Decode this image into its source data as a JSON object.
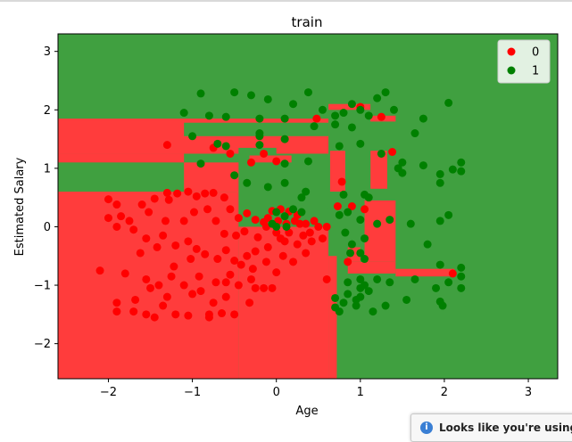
{
  "chart_data": {
    "type": "scatter",
    "title": "train",
    "xlabel": "Age",
    "ylabel": "Estimated Salary",
    "xlim": [
      -2.6,
      3.35
    ],
    "ylim": [
      -2.6,
      3.3
    ],
    "x_ticks": [
      -2,
      -1,
      0,
      1,
      2,
      3
    ],
    "y_ticks": [
      -2,
      -1,
      0,
      1,
      2,
      3
    ],
    "grid": false,
    "legend_position": "top-right",
    "region_colors": {
      "0": "#ff3c3c",
      "1": "#40a040"
    },
    "background_region": "1",
    "regions_class_0": [
      {
        "x": [
          -2.6,
          -0.45
        ],
        "y": [
          -2.6,
          0.6
        ]
      },
      {
        "x": [
          -0.45,
          0.62
        ],
        "y": [
          -2.6,
          0.0
        ]
      },
      {
        "x": [
          -2.6,
          0.62
        ],
        "y": [
          1.25,
          1.85
        ]
      },
      {
        "x": [
          -2.6,
          -1.1
        ],
        "y": [
          1.1,
          1.25
        ]
      },
      {
        "x": [
          -1.1,
          -0.45
        ],
        "y": [
          0.6,
          1.1
        ]
      },
      {
        "x": [
          0.62,
          0.72
        ],
        "y": [
          -2.6,
          -0.5
        ]
      },
      {
        "x": [
          0.64,
          0.82
        ],
        "y": [
          0.6,
          1.3
        ]
      },
      {
        "x": [
          0.82,
          0.88
        ],
        "y": [
          0.2,
          0.5
        ]
      },
      {
        "x": [
          0.85,
          1.0
        ],
        "y": [
          -0.6,
          -0.35
        ]
      },
      {
        "x": [
          0.85,
          1.42
        ],
        "y": [
          -0.8,
          -0.6
        ]
      },
      {
        "x": [
          1.05,
          1.42
        ],
        "y": [
          -0.6,
          0.45
        ]
      },
      {
        "x": [
          1.12,
          1.32
        ],
        "y": [
          0.65,
          1.3
        ]
      },
      {
        "x": [
          1.42,
          2.12
        ],
        "y": [
          -0.85,
          -0.72
        ]
      },
      {
        "x": [
          0.62,
          1.12
        ],
        "y": [
          2.0,
          2.1
        ]
      },
      {
        "x": [
          1.12,
          1.42
        ],
        "y": [
          1.8,
          1.9
        ]
      },
      {
        "x": [
          -0.32,
          0.18
        ],
        "y": [
          1.1,
          1.22
        ]
      }
    ],
    "regions_class_1": [
      {
        "x": [
          -1.1,
          0.62
        ],
        "y": [
          1.55,
          1.78
        ]
      },
      {
        "x": [
          -0.45,
          0.0
        ],
        "y": [
          1.22,
          1.35
        ]
      },
      {
        "x": [
          0.72,
          0.82
        ],
        "y": [
          -2.6,
          -0.5
        ]
      },
      {
        "x": [
          -0.15,
          0.62
        ],
        "y": [
          0.0,
          0.3
        ]
      },
      {
        "x": [
          0.6,
          0.85
        ],
        "y": [
          0.3,
          0.6
        ]
      },
      {
        "x": [
          0.82,
          1.05
        ],
        "y": [
          -0.35,
          0.6
        ]
      },
      {
        "x": [
          1.0,
          1.12
        ],
        "y": [
          0.6,
          1.3
        ]
      },
      {
        "x": [
          -0.05,
          0.62
        ],
        "y": [
          0.6,
          0.8
        ]
      }
    ],
    "series": [
      {
        "name": "0",
        "color": "#ff0000",
        "points": [
          [
            -2.0,
            0.47
          ],
          [
            -1.9,
            0.38
          ],
          [
            -1.85,
            0.18
          ],
          [
            -1.75,
            0.1
          ],
          [
            -1.6,
            0.38
          ],
          [
            -1.45,
            0.48
          ],
          [
            -1.3,
            0.58
          ],
          [
            -1.28,
            0.46
          ],
          [
            -1.18,
            0.57
          ],
          [
            -1.05,
            0.6
          ],
          [
            -0.95,
            0.52
          ],
          [
            -0.85,
            0.57
          ],
          [
            -0.75,
            0.58
          ],
          [
            -0.62,
            0.5
          ],
          [
            -0.55,
            0.3
          ],
          [
            -0.45,
            0.15
          ],
          [
            -0.35,
            0.23
          ],
          [
            -0.25,
            0.12
          ],
          [
            -0.15,
            0.08
          ],
          [
            -0.05,
            0.27
          ],
          [
            0.05,
            0.3
          ],
          [
            0.15,
            0.26
          ],
          [
            0.25,
            0.2
          ],
          [
            0.35,
            0.05
          ],
          [
            0.4,
            -0.1
          ],
          [
            0.5,
            0.0
          ],
          [
            0.55,
            -0.2
          ],
          [
            -1.9,
            0.0
          ],
          [
            -1.7,
            -0.05
          ],
          [
            -1.55,
            -0.2
          ],
          [
            -1.35,
            -0.15
          ],
          [
            -1.2,
            -0.32
          ],
          [
            -1.05,
            -0.25
          ],
          [
            -0.95,
            -0.38
          ],
          [
            -0.85,
            -0.47
          ],
          [
            -0.7,
            -0.55
          ],
          [
            -0.6,
            -0.4
          ],
          [
            -0.5,
            -0.58
          ],
          [
            -0.35,
            -0.5
          ],
          [
            -0.25,
            -0.42
          ],
          [
            -0.1,
            -0.35
          ],
          [
            0.05,
            -0.2
          ],
          [
            0.15,
            -0.1
          ],
          [
            0.25,
            -0.3
          ],
          [
            0.35,
            -0.45
          ],
          [
            -2.1,
            -0.75
          ],
          [
            -1.8,
            -0.8
          ],
          [
            -1.55,
            -0.9
          ],
          [
            -1.4,
            -1.0
          ],
          [
            -1.25,
            -0.85
          ],
          [
            -1.1,
            -1.0
          ],
          [
            -0.9,
            -1.1
          ],
          [
            -0.75,
            -1.3
          ],
          [
            -0.6,
            -1.2
          ],
          [
            -0.45,
            -1.0
          ],
          [
            -0.3,
            -0.9
          ],
          [
            -0.15,
            -1.05
          ],
          [
            0.0,
            -0.78
          ],
          [
            0.2,
            -0.6
          ],
          [
            -1.9,
            -1.3
          ],
          [
            -1.7,
            -1.45
          ],
          [
            -1.55,
            -1.5
          ],
          [
            -1.35,
            -1.35
          ],
          [
            -1.2,
            -1.5
          ],
          [
            -1.05,
            -1.52
          ],
          [
            -0.8,
            -1.55
          ],
          [
            -0.65,
            -1.48
          ],
          [
            -0.5,
            -1.5
          ],
          [
            -0.32,
            -1.3
          ],
          [
            -1.9,
            -1.45
          ],
          [
            -1.45,
            -1.55
          ],
          [
            -0.8,
            -1.5
          ],
          [
            -1.52,
            0.25
          ],
          [
            -1.32,
            0.1
          ],
          [
            -1.1,
            0.1
          ],
          [
            -0.98,
            0.25
          ],
          [
            -0.82,
            0.3
          ],
          [
            -0.72,
            0.1
          ],
          [
            -0.62,
            -0.12
          ],
          [
            -0.48,
            -0.15
          ],
          [
            -0.38,
            -0.08
          ],
          [
            -0.22,
            -0.18
          ],
          [
            -0.12,
            0.0
          ],
          [
            0.02,
            0.1
          ],
          [
            0.12,
            0.05
          ],
          [
            0.22,
            0.1
          ],
          [
            0.32,
            -0.15
          ],
          [
            0.42,
            -0.25
          ],
          [
            -2.0,
            0.15
          ],
          [
            -1.62,
            -0.45
          ],
          [
            -1.42,
            -0.35
          ],
          [
            -1.22,
            -0.68
          ],
          [
            -1.02,
            -0.55
          ],
          [
            -0.92,
            -0.85
          ],
          [
            -0.72,
            -0.95
          ],
          [
            -0.55,
            -0.82
          ],
          [
            -0.42,
            -0.65
          ],
          [
            -0.28,
            -0.72
          ],
          [
            -0.12,
            -0.6
          ],
          [
            0.08,
            -0.5
          ],
          [
            -0.1,
            0.15
          ],
          [
            0.0,
            -0.1
          ],
          [
            0.1,
            -0.25
          ],
          [
            0.28,
            0.05
          ],
          [
            0.45,
            0.1
          ],
          [
            -0.75,
            1.35
          ],
          [
            -0.55,
            1.25
          ],
          [
            -0.3,
            1.1
          ],
          [
            -0.15,
            1.25
          ],
          [
            0.0,
            1.12
          ],
          [
            -1.3,
            1.4
          ],
          [
            0.48,
            1.85
          ],
          [
            1.0,
            2.05
          ],
          [
            1.25,
            1.88
          ],
          [
            1.38,
            1.28
          ],
          [
            0.78,
            0.77
          ],
          [
            0.73,
            0.35
          ],
          [
            0.85,
            -0.6
          ],
          [
            0.6,
            -0.9
          ],
          [
            2.1,
            -0.8
          ],
          [
            0.9,
            0.35
          ],
          [
            1.05,
            0.3
          ],
          [
            -1.5,
            -1.05
          ],
          [
            -1.3,
            -1.2
          ],
          [
            0.6,
            0.0
          ],
          [
            -0.25,
            -1.05
          ],
          [
            -0.05,
            -1.05
          ],
          [
            -1.0,
            -1.15
          ],
          [
            -1.68,
            -1.25
          ],
          [
            -0.6,
            -0.95
          ]
        ]
      },
      {
        "name": "1",
        "color": "#008000",
        "points": [
          [
            -0.9,
            2.28
          ],
          [
            -0.5,
            2.3
          ],
          [
            -0.3,
            2.25
          ],
          [
            -0.1,
            2.18
          ],
          [
            0.2,
            2.1
          ],
          [
            0.38,
            2.3
          ],
          [
            0.55,
            2.0
          ],
          [
            0.7,
            1.9
          ],
          [
            0.8,
            1.95
          ],
          [
            0.9,
            2.1
          ],
          [
            1.0,
            2.0
          ],
          [
            1.2,
            2.2
          ],
          [
            1.3,
            2.3
          ],
          [
            1.1,
            1.9
          ],
          [
            1.4,
            2.0
          ],
          [
            1.75,
            1.85
          ],
          [
            2.05,
            2.12
          ],
          [
            1.65,
            1.6
          ],
          [
            -1.1,
            1.95
          ],
          [
            -0.8,
            1.9
          ],
          [
            -0.6,
            1.88
          ],
          [
            -0.2,
            1.85
          ],
          [
            0.1,
            1.85
          ],
          [
            0.45,
            1.72
          ],
          [
            0.7,
            1.75
          ],
          [
            0.9,
            1.7
          ],
          [
            -0.2,
            1.6
          ],
          [
            -0.2,
            1.55
          ],
          [
            0.1,
            1.5
          ],
          [
            -1.0,
            1.55
          ],
          [
            -0.7,
            1.42
          ],
          [
            -0.6,
            1.38
          ],
          [
            -0.2,
            1.4
          ],
          [
            0.75,
            1.38
          ],
          [
            1.0,
            1.42
          ],
          [
            1.45,
            1.0
          ],
          [
            1.5,
            1.1
          ],
          [
            1.75,
            1.05
          ],
          [
            1.95,
            0.9
          ],
          [
            2.1,
            0.98
          ],
          [
            2.2,
            1.1
          ],
          [
            2.2,
            0.95
          ],
          [
            1.95,
            0.75
          ],
          [
            1.5,
            0.92
          ],
          [
            -0.5,
            0.88
          ],
          [
            -0.35,
            0.75
          ],
          [
            -0.1,
            0.68
          ],
          [
            0.1,
            0.75
          ],
          [
            0.35,
            0.6
          ],
          [
            0.3,
            0.5
          ],
          [
            -0.9,
            1.08
          ],
          [
            0.1,
            1.08
          ],
          [
            0.38,
            1.12
          ],
          [
            0.8,
            0.55
          ],
          [
            0.85,
            0.25
          ],
          [
            1.05,
            0.55
          ],
          [
            1.1,
            0.5
          ],
          [
            1.0,
            0.12
          ],
          [
            1.2,
            0.05
          ],
          [
            0.75,
            0.2
          ],
          [
            1.35,
            0.12
          ],
          [
            1.6,
            0.05
          ],
          [
            1.95,
            0.1
          ],
          [
            2.05,
            0.2
          ],
          [
            1.8,
            -0.3
          ],
          [
            0.82,
            -0.1
          ],
          [
            0.9,
            -0.3
          ],
          [
            1.05,
            -0.2
          ],
          [
            1.0,
            -0.45
          ],
          [
            0.88,
            -0.45
          ],
          [
            0.85,
            -0.95
          ],
          [
            1.0,
            -1.05
          ],
          [
            1.1,
            -1.1
          ],
          [
            1.2,
            -0.9
          ],
          [
            1.35,
            -0.95
          ],
          [
            1.65,
            -0.9
          ],
          [
            1.95,
            -0.65
          ],
          [
            2.2,
            -0.7
          ],
          [
            2.2,
            -0.85
          ],
          [
            2.2,
            -1.05
          ],
          [
            2.05,
            -0.95
          ],
          [
            1.9,
            -1.05
          ],
          [
            1.55,
            -1.25
          ],
          [
            1.3,
            -1.35
          ],
          [
            1.15,
            -1.45
          ],
          [
            0.95,
            -1.35
          ],
          [
            0.95,
            -1.25
          ],
          [
            0.8,
            -1.3
          ],
          [
            0.75,
            -1.45
          ],
          [
            0.7,
            -1.22
          ],
          [
            0.7,
            -1.38
          ],
          [
            0.85,
            -1.15
          ],
          [
            1.05,
            -1.0
          ],
          [
            1.0,
            -0.9
          ],
          [
            1.05,
            -0.55
          ],
          [
            1.95,
            -1.28
          ],
          [
            1.98,
            -1.35
          ],
          [
            0.0,
            0.25
          ],
          [
            0.2,
            0.3
          ],
          [
            0.3,
            0.25
          ],
          [
            0.1,
            0.18
          ],
          [
            0.0,
            0.0
          ],
          [
            -0.05,
            0.05
          ],
          [
            0.12,
            0.0
          ],
          [
            1.0,
            -1.2
          ],
          [
            1.25,
            1.25
          ]
        ]
      }
    ]
  },
  "notification": {
    "text": "Looks like you're using I"
  }
}
